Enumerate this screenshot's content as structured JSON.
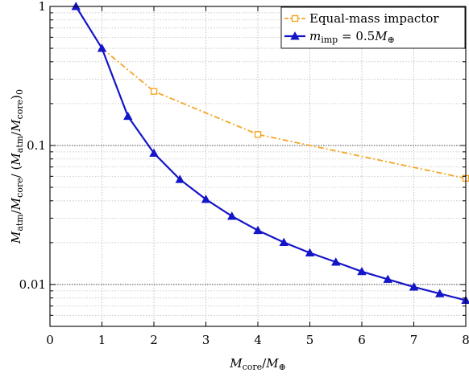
{
  "chart_data": {
    "type": "line",
    "title": "",
    "xlabel": "M_core/M_⊕",
    "ylabel": "M_atm/M_core/(M_atm/M_core)_0",
    "xlim": [
      0,
      8
    ],
    "ylim": [
      0.005,
      1
    ],
    "yscale": "log",
    "grid": true,
    "legend_position": "top-right",
    "x_ticks": [
      0,
      1,
      2,
      3,
      4,
      5,
      6,
      7,
      8
    ],
    "x_tick_labels": [
      "0",
      "1",
      "2",
      "3",
      "4",
      "5",
      "6",
      "7",
      "8"
    ],
    "y_ticks": [
      0.01,
      0.1,
      1
    ],
    "y_tick_labels": [
      "0.01",
      "0.1",
      "1"
    ],
    "series": [
      {
        "name": "Equal-mass impactor",
        "color": "#f5a623",
        "line_style": "dashed",
        "marker": "square-open",
        "x": [
          1,
          2,
          4,
          8
        ],
        "y": [
          0.5,
          0.245,
          0.12,
          0.058
        ],
        "marked_x": [
          2,
          4,
          8
        ]
      },
      {
        "name": "m_imp = 0.5M_⊕",
        "color": "#1515c8",
        "line_style": "solid",
        "marker": "triangle-filled",
        "x": [
          0.5,
          1,
          1.5,
          2,
          2.5,
          3,
          3.5,
          4,
          4.5,
          5,
          5.5,
          6,
          6.5,
          7,
          7.5,
          8
        ],
        "y": [
          1.0,
          0.5,
          0.162,
          0.088,
          0.057,
          0.041,
          0.031,
          0.0245,
          0.0201,
          0.0169,
          0.0145,
          0.0124,
          0.0109,
          0.0096,
          0.0086,
          0.0077
        ]
      }
    ]
  }
}
